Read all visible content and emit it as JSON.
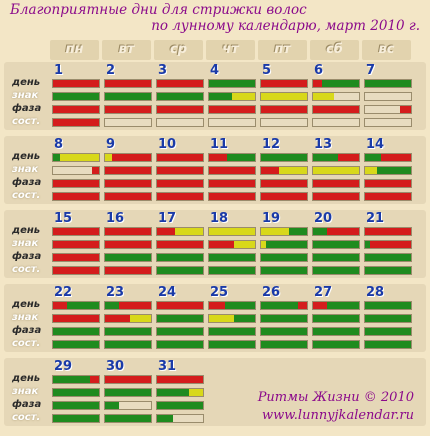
{
  "title_line1": "Благоприятные дни для стрижки волос",
  "title_line2": "по лунному календарю, март 2010 г.",
  "weekdays": [
    "пн",
    "вт",
    "ср",
    "чт",
    "пт",
    "сб",
    "вс"
  ],
  "row_labels": [
    "день",
    "знак",
    "фаза",
    "сост."
  ],
  "footer_line1": "Ритмы Жизни © 2010",
  "footer_line2": "www.lunnyjkalendar.ru",
  "colors": {
    "green": "#1f8b1f",
    "red": "#d41c1c",
    "yellow": "#d8d81a",
    "empty": "#e8dcc0"
  },
  "days": [
    {
      "num": "1",
      "col": 0,
      "week": 0,
      "day": [
        [
          "r",
          1
        ]
      ],
      "sign": [
        [
          "g",
          1
        ]
      ],
      "phase": [
        [
          "r",
          1
        ]
      ],
      "sost": [
        [
          "r",
          1
        ]
      ]
    },
    {
      "num": "2",
      "col": 1,
      "week": 0,
      "day": [
        [
          "r",
          1
        ]
      ],
      "sign": [
        [
          "g",
          1
        ]
      ],
      "phase": [
        [
          "r",
          1
        ]
      ],
      "sost": []
    },
    {
      "num": "3",
      "col": 2,
      "week": 0,
      "day": [
        [
          "r",
          1
        ]
      ],
      "sign": [
        [
          "g",
          1
        ]
      ],
      "phase": [
        [
          "r",
          1
        ]
      ],
      "sost": []
    },
    {
      "num": "4",
      "col": 3,
      "week": 0,
      "day": [
        [
          "g",
          1
        ]
      ],
      "sign": [
        [
          "g",
          0.5
        ],
        [
          "y",
          0.5
        ]
      ],
      "phase": [
        [
          "r",
          1
        ]
      ],
      "sost": []
    },
    {
      "num": "5",
      "col": 4,
      "week": 0,
      "day": [
        [
          "r",
          1
        ]
      ],
      "sign": [
        [
          "y",
          1
        ]
      ],
      "phase": [
        [
          "r",
          1
        ]
      ],
      "sost": []
    },
    {
      "num": "6",
      "col": 5,
      "week": 0,
      "day": [
        [
          "r",
          0.2
        ],
        [
          "g",
          0.8
        ]
      ],
      "sign": [
        [
          "y",
          0.45
        ],
        [
          "e",
          0.55
        ]
      ],
      "phase": [
        [
          "r",
          1
        ]
      ],
      "sost": []
    },
    {
      "num": "7",
      "col": 6,
      "week": 0,
      "day": [
        [
          "g",
          1
        ]
      ],
      "sign": [],
      "phase": [
        [
          "e",
          0.75
        ],
        [
          "r",
          0.25
        ]
      ],
      "sost": []
    },
    {
      "num": "8",
      "col": 0,
      "week": 1,
      "day": [
        [
          "g",
          0.15
        ],
        [
          "y",
          0.85
        ]
      ],
      "sign": [
        [
          "e",
          0.85
        ],
        [
          "r",
          0.15
        ]
      ],
      "phase": [
        [
          "r",
          1
        ]
      ],
      "sost": [
        [
          "r",
          1
        ]
      ]
    },
    {
      "num": "9",
      "col": 1,
      "week": 1,
      "day": [
        [
          "y",
          0.15
        ],
        [
          "r",
          0.85
        ]
      ],
      "sign": [
        [
          "r",
          1
        ]
      ],
      "phase": [
        [
          "r",
          1
        ]
      ],
      "sost": [
        [
          "r",
          1
        ]
      ]
    },
    {
      "num": "10",
      "col": 2,
      "week": 1,
      "day": [
        [
          "r",
          1
        ]
      ],
      "sign": [
        [
          "r",
          1
        ]
      ],
      "phase": [
        [
          "r",
          1
        ]
      ],
      "sost": [
        [
          "r",
          1
        ]
      ]
    },
    {
      "num": "11",
      "col": 3,
      "week": 1,
      "day": [
        [
          "r",
          0.4
        ],
        [
          "g",
          0.6
        ]
      ],
      "sign": [
        [
          "r",
          1
        ]
      ],
      "phase": [
        [
          "r",
          1
        ]
      ],
      "sost": [
        [
          "r",
          1
        ]
      ]
    },
    {
      "num": "12",
      "col": 4,
      "week": 1,
      "day": [
        [
          "g",
          1
        ]
      ],
      "sign": [
        [
          "r",
          0.4
        ],
        [
          "y",
          0.6
        ]
      ],
      "phase": [
        [
          "r",
          1
        ]
      ],
      "sost": [
        [
          "r",
          1
        ]
      ]
    },
    {
      "num": "13",
      "col": 5,
      "week": 1,
      "day": [
        [
          "g",
          0.55
        ],
        [
          "r",
          0.45
        ]
      ],
      "sign": [
        [
          "y",
          1
        ]
      ],
      "phase": [
        [
          "r",
          1
        ]
      ],
      "sost": [
        [
          "r",
          1
        ]
      ]
    },
    {
      "num": "14",
      "col": 6,
      "week": 1,
      "day": [
        [
          "g",
          0.35
        ],
        [
          "r",
          0.65
        ]
      ],
      "sign": [
        [
          "y",
          0.25
        ],
        [
          "g",
          0.75
        ]
      ],
      "phase": [
        [
          "r",
          1
        ]
      ],
      "sost": [
        [
          "r",
          1
        ]
      ]
    },
    {
      "num": "15",
      "col": 0,
      "week": 2,
      "day": [
        [
          "r",
          1
        ]
      ],
      "sign": [
        [
          "r",
          1
        ]
      ],
      "phase": [
        [
          "r",
          1
        ]
      ],
      "sost": [
        [
          "r",
          1
        ]
      ]
    },
    {
      "num": "16",
      "col": 1,
      "week": 2,
      "day": [
        [
          "r",
          1
        ]
      ],
      "sign": [
        [
          "r",
          1
        ]
      ],
      "phase": [
        [
          "g",
          1
        ]
      ],
      "sost": [
        [
          "r",
          1
        ]
      ]
    },
    {
      "num": "17",
      "col": 2,
      "week": 2,
      "day": [
        [
          "r",
          0.4
        ],
        [
          "y",
          0.6
        ]
      ],
      "sign": [
        [
          "r",
          1
        ]
      ],
      "phase": [
        [
          "g",
          1
        ]
      ],
      "sost": [
        [
          "g",
          1
        ]
      ]
    },
    {
      "num": "18",
      "col": 3,
      "week": 2,
      "day": [
        [
          "y",
          1
        ]
      ],
      "sign": [
        [
          "r",
          0.55
        ],
        [
          "y",
          0.45
        ]
      ],
      "phase": [
        [
          "g",
          1
        ]
      ],
      "sost": [
        [
          "g",
          1
        ]
      ]
    },
    {
      "num": "19",
      "col": 4,
      "week": 2,
      "day": [
        [
          "y",
          0.6
        ],
        [
          "g",
          0.4
        ]
      ],
      "sign": [
        [
          "y",
          0.1
        ],
        [
          "g",
          0.9
        ]
      ],
      "phase": [
        [
          "g",
          1
        ]
      ],
      "sost": [
        [
          "g",
          1
        ]
      ]
    },
    {
      "num": "20",
      "col": 5,
      "week": 2,
      "day": [
        [
          "g",
          0.3
        ],
        [
          "r",
          0.7
        ]
      ],
      "sign": [
        [
          "g",
          1
        ]
      ],
      "phase": [
        [
          "g",
          1
        ]
      ],
      "sost": [
        [
          "g",
          1
        ]
      ]
    },
    {
      "num": "21",
      "col": 6,
      "week": 2,
      "day": [
        [
          "r",
          1
        ]
      ],
      "sign": [
        [
          "g",
          0.1
        ],
        [
          "r",
          0.9
        ]
      ],
      "phase": [
        [
          "g",
          1
        ]
      ],
      "sost": [
        [
          "g",
          1
        ]
      ]
    },
    {
      "num": "22",
      "col": 0,
      "week": 3,
      "day": [
        [
          "r",
          0.3
        ],
        [
          "g",
          0.7
        ]
      ],
      "sign": [
        [
          "r",
          1
        ]
      ],
      "phase": [
        [
          "g",
          1
        ]
      ],
      "sost": [
        [
          "g",
          1
        ]
      ]
    },
    {
      "num": "23",
      "col": 1,
      "week": 3,
      "day": [
        [
          "g",
          0.3
        ],
        [
          "r",
          0.7
        ]
      ],
      "sign": [
        [
          "r",
          0.55
        ],
        [
          "y",
          0.45
        ]
      ],
      "phase": [
        [
          "g",
          1
        ]
      ],
      "sost": [
        [
          "g",
          1
        ]
      ]
    },
    {
      "num": "24",
      "col": 2,
      "week": 3,
      "day": [
        [
          "r",
          1
        ]
      ],
      "sign": [
        [
          "g",
          1
        ]
      ],
      "phase": [
        [
          "g",
          1
        ]
      ],
      "sost": [
        [
          "g",
          1
        ]
      ]
    },
    {
      "num": "25",
      "col": 3,
      "week": 3,
      "day": [
        [
          "r",
          0.35
        ],
        [
          "g",
          0.65
        ]
      ],
      "sign": [
        [
          "y",
          0.55
        ],
        [
          "g",
          0.45
        ]
      ],
      "phase": [
        [
          "g",
          1
        ]
      ],
      "sost": [
        [
          "g",
          1
        ]
      ]
    },
    {
      "num": "26",
      "col": 4,
      "week": 3,
      "day": [
        [
          "g",
          0.8
        ],
        [
          "r",
          0.2
        ]
      ],
      "sign": [
        [
          "g",
          1
        ]
      ],
      "phase": [
        [
          "g",
          1
        ]
      ],
      "sost": [
        [
          "g",
          1
        ]
      ]
    },
    {
      "num": "27",
      "col": 5,
      "week": 3,
      "day": [
        [
          "r",
          0.3
        ],
        [
          "g",
          0.7
        ]
      ],
      "sign": [
        [
          "g",
          1
        ]
      ],
      "phase": [
        [
          "g",
          1
        ]
      ],
      "sost": [
        [
          "g",
          1
        ]
      ]
    },
    {
      "num": "28",
      "col": 6,
      "week": 3,
      "day": [
        [
          "g",
          1
        ]
      ],
      "sign": [
        [
          "g",
          1
        ]
      ],
      "phase": [
        [
          "g",
          1
        ]
      ],
      "sost": [
        [
          "g",
          1
        ]
      ]
    },
    {
      "num": "29",
      "col": 0,
      "week": 4,
      "day": [
        [
          "g",
          0.8
        ],
        [
          "r",
          0.2
        ]
      ],
      "sign": [
        [
          "g",
          1
        ]
      ],
      "phase": [
        [
          "g",
          1
        ]
      ],
      "sost": [
        [
          "g",
          1
        ]
      ]
    },
    {
      "num": "30",
      "col": 1,
      "week": 4,
      "day": [
        [
          "r",
          1
        ]
      ],
      "sign": [
        [
          "g",
          1
        ]
      ],
      "phase": [
        [
          "g",
          0.3
        ],
        [
          "e",
          0.7
        ]
      ],
      "sost": [
        [
          "g",
          1
        ]
      ]
    },
    {
      "num": "31",
      "col": 2,
      "week": 4,
      "day": [
        [
          "r",
          1
        ]
      ],
      "sign": [
        [
          "g",
          0.7
        ],
        [
          "y",
          0.3
        ]
      ],
      "phase": [
        [
          "g",
          1
        ]
      ],
      "sost": [
        [
          "g",
          0.35
        ],
        [
          "e",
          0.65
        ]
      ]
    }
  ]
}
